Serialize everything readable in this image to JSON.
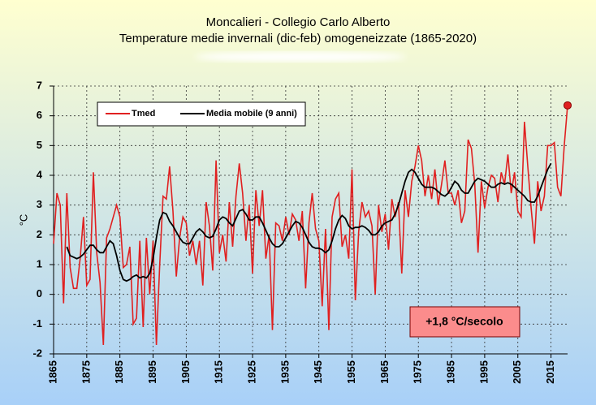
{
  "chart_data": {
    "type": "line",
    "title": "Moncalieri - Collegio Carlo Alberto",
    "subtitle": "Temperature medie invernali (dic-feb) omogeneizzate (1865-2020)",
    "ylabel": "°C",
    "annotation": "+1,8 °C/secolo",
    "x": [
      1865,
      1866,
      1867,
      1868,
      1869,
      1870,
      1871,
      1872,
      1873,
      1874,
      1875,
      1876,
      1877,
      1878,
      1879,
      1880,
      1881,
      1882,
      1883,
      1884,
      1885,
      1886,
      1887,
      1888,
      1889,
      1890,
      1891,
      1892,
      1893,
      1894,
      1895,
      1896,
      1897,
      1898,
      1899,
      1900,
      1901,
      1902,
      1903,
      1904,
      1905,
      1906,
      1907,
      1908,
      1909,
      1910,
      1911,
      1912,
      1913,
      1914,
      1915,
      1916,
      1917,
      1918,
      1919,
      1920,
      1921,
      1922,
      1923,
      1924,
      1925,
      1926,
      1927,
      1928,
      1929,
      1930,
      1931,
      1932,
      1933,
      1934,
      1935,
      1936,
      1937,
      1938,
      1939,
      1940,
      1941,
      1942,
      1943,
      1944,
      1945,
      1946,
      1947,
      1948,
      1949,
      1950,
      1951,
      1952,
      1953,
      1954,
      1955,
      1956,
      1957,
      1958,
      1959,
      1960,
      1961,
      1962,
      1963,
      1964,
      1965,
      1966,
      1967,
      1968,
      1969,
      1970,
      1971,
      1972,
      1973,
      1974,
      1975,
      1976,
      1977,
      1978,
      1979,
      1980,
      1981,
      1982,
      1983,
      1984,
      1985,
      1986,
      1987,
      1988,
      1989,
      1990,
      1991,
      1992,
      1993,
      1994,
      1995,
      1996,
      1997,
      1998,
      1999,
      2000,
      2001,
      2002,
      2003,
      2004,
      2005,
      2006,
      2007,
      2008,
      2009,
      2010,
      2011,
      2012,
      2013,
      2014,
      2015,
      2016,
      2017,
      2018,
      2019,
      2020
    ],
    "series": [
      {
        "name": "Tmed",
        "color": "#e02020",
        "marker_last": true,
        "values": [
          1.7,
          3.4,
          3.0,
          -0.3,
          3.4,
          0.9,
          0.2,
          0.2,
          1.2,
          2.6,
          0.3,
          0.5,
          4.1,
          1.4,
          0.4,
          -1.7,
          1.9,
          2.2,
          2.6,
          3.0,
          2.6,
          0.9,
          1.0,
          1.6,
          -1.0,
          -0.8,
          1.8,
          -1.1,
          1.9,
          0.0,
          1.8,
          -1.7,
          1.0,
          3.3,
          3.2,
          4.3,
          2.8,
          0.6,
          1.9,
          2.6,
          2.4,
          1.3,
          1.8,
          1.0,
          1.8,
          0.3,
          3.1,
          2.3,
          0.8,
          4.5,
          1.4,
          2.0,
          1.1,
          3.1,
          1.6,
          3.3,
          4.4,
          3.4,
          1.8,
          3.0,
          0.7,
          3.5,
          2.3,
          3.5,
          1.2,
          2.0,
          -1.2,
          2.4,
          2.3,
          1.8,
          2.6,
          2.0,
          2.7,
          2.5,
          1.8,
          2.8,
          0.2,
          2.4,
          3.4,
          2.2,
          1.8,
          -0.4,
          2.2,
          -1.2,
          2.6,
          3.2,
          3.4,
          1.6,
          2.0,
          1.2,
          4.2,
          -0.2,
          2.1,
          3.1,
          2.6,
          2.8,
          2.3,
          0.0,
          3.0,
          2.1,
          2.7,
          1.5,
          3.2,
          2.6,
          3.1,
          0.7,
          3.5,
          2.6,
          3.8,
          4.3,
          5.0,
          4.5,
          3.3,
          4.0,
          3.2,
          4.2,
          3.0,
          3.7,
          4.5,
          3.4,
          3.4,
          3.0,
          3.5,
          2.4,
          2.8,
          5.2,
          4.9,
          3.7,
          1.4,
          3.8,
          2.9,
          3.6,
          4.0,
          3.9,
          3.1,
          4.1,
          3.7,
          4.7,
          3.4,
          4.1,
          2.8,
          2.6,
          5.8,
          4.3,
          2.9,
          1.7,
          3.8,
          2.8,
          3.3,
          5.0,
          5.0,
          5.1,
          3.6,
          3.3,
          5.0,
          6.35
        ]
      },
      {
        "name": "Media mobile (9 anni)",
        "color": "#000000",
        "values": [
          null,
          null,
          null,
          null,
          1.6,
          1.3,
          1.25,
          1.2,
          1.25,
          1.35,
          1.5,
          1.65,
          1.65,
          1.5,
          1.4,
          1.4,
          1.6,
          1.8,
          1.7,
          1.3,
          0.8,
          0.5,
          0.45,
          0.5,
          0.6,
          0.65,
          0.55,
          0.6,
          0.55,
          0.7,
          1.2,
          1.9,
          2.5,
          2.75,
          2.7,
          2.45,
          2.3,
          2.1,
          1.9,
          1.75,
          1.7,
          1.7,
          1.9,
          2.1,
          2.2,
          2.1,
          1.95,
          1.9,
          1.95,
          2.2,
          2.5,
          2.6,
          2.55,
          2.4,
          2.3,
          2.55,
          2.8,
          2.85,
          2.7,
          2.5,
          2.5,
          2.6,
          2.6,
          2.4,
          2.15,
          1.9,
          1.7,
          1.6,
          1.6,
          1.7,
          1.9,
          2.1,
          2.3,
          2.45,
          2.4,
          2.25,
          2.0,
          1.75,
          1.6,
          1.55,
          1.55,
          1.5,
          1.4,
          1.5,
          1.8,
          2.2,
          2.5,
          2.65,
          2.55,
          2.3,
          2.2,
          2.25,
          2.25,
          2.3,
          2.25,
          2.15,
          2.0,
          2.0,
          2.1,
          2.3,
          2.4,
          2.45,
          2.5,
          2.7,
          3.0,
          3.4,
          3.8,
          4.1,
          4.2,
          4.1,
          3.9,
          3.7,
          3.6,
          3.6,
          3.6,
          3.55,
          3.45,
          3.35,
          3.3,
          3.4,
          3.6,
          3.8,
          3.7,
          3.5,
          3.4,
          3.4,
          3.6,
          3.8,
          3.9,
          3.85,
          3.8,
          3.7,
          3.6,
          3.6,
          3.7,
          3.75,
          3.7,
          3.75,
          3.7,
          3.6,
          3.5,
          3.4,
          3.3,
          3.15,
          3.1,
          3.1,
          3.3,
          3.6,
          3.9,
          4.2,
          4.4,
          null,
          null,
          null,
          null,
          null
        ]
      }
    ],
    "xlim": [
      1865,
      2020
    ],
    "xticks": [
      1865,
      1875,
      1885,
      1895,
      1905,
      1915,
      1925,
      1935,
      1945,
      1955,
      1965,
      1975,
      1985,
      1995,
      2005,
      2015
    ],
    "ylim": [
      -2,
      7
    ],
    "yticks": [
      -2,
      -1,
      0,
      1,
      2,
      3,
      4,
      5,
      6,
      7
    ],
    "grid": true
  }
}
